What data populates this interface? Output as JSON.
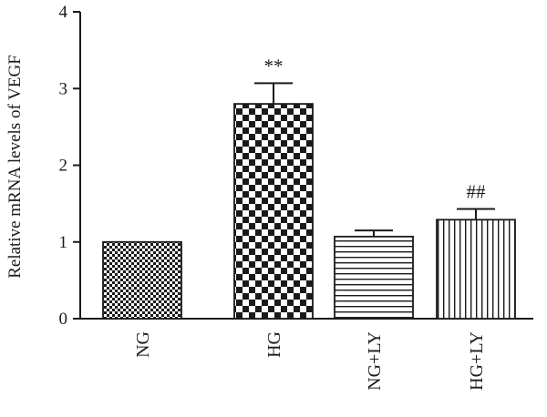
{
  "chart_data": {
    "type": "bar",
    "title": "",
    "xlabel": "",
    "ylabel": "Relative mRNA levels of VEGF",
    "ylim": [
      0,
      4
    ],
    "yticks": [
      0,
      1,
      2,
      3,
      4
    ],
    "grid": false,
    "legend": "none",
    "categories": [
      "NG",
      "HG",
      "NG+LY",
      "HG+LY"
    ],
    "values": [
      1.0,
      2.8,
      1.07,
      1.29
    ],
    "errors": [
      0,
      0.27,
      0.08,
      0.14
    ],
    "patterns": [
      "fine-checker",
      "coarse-checker",
      "horizontal-lines",
      "vertical-lines"
    ],
    "annotations": [
      "",
      "**",
      "",
      "##"
    ],
    "colors": {
      "ink": "#1a1a1a",
      "background": "#ffffff"
    }
  }
}
